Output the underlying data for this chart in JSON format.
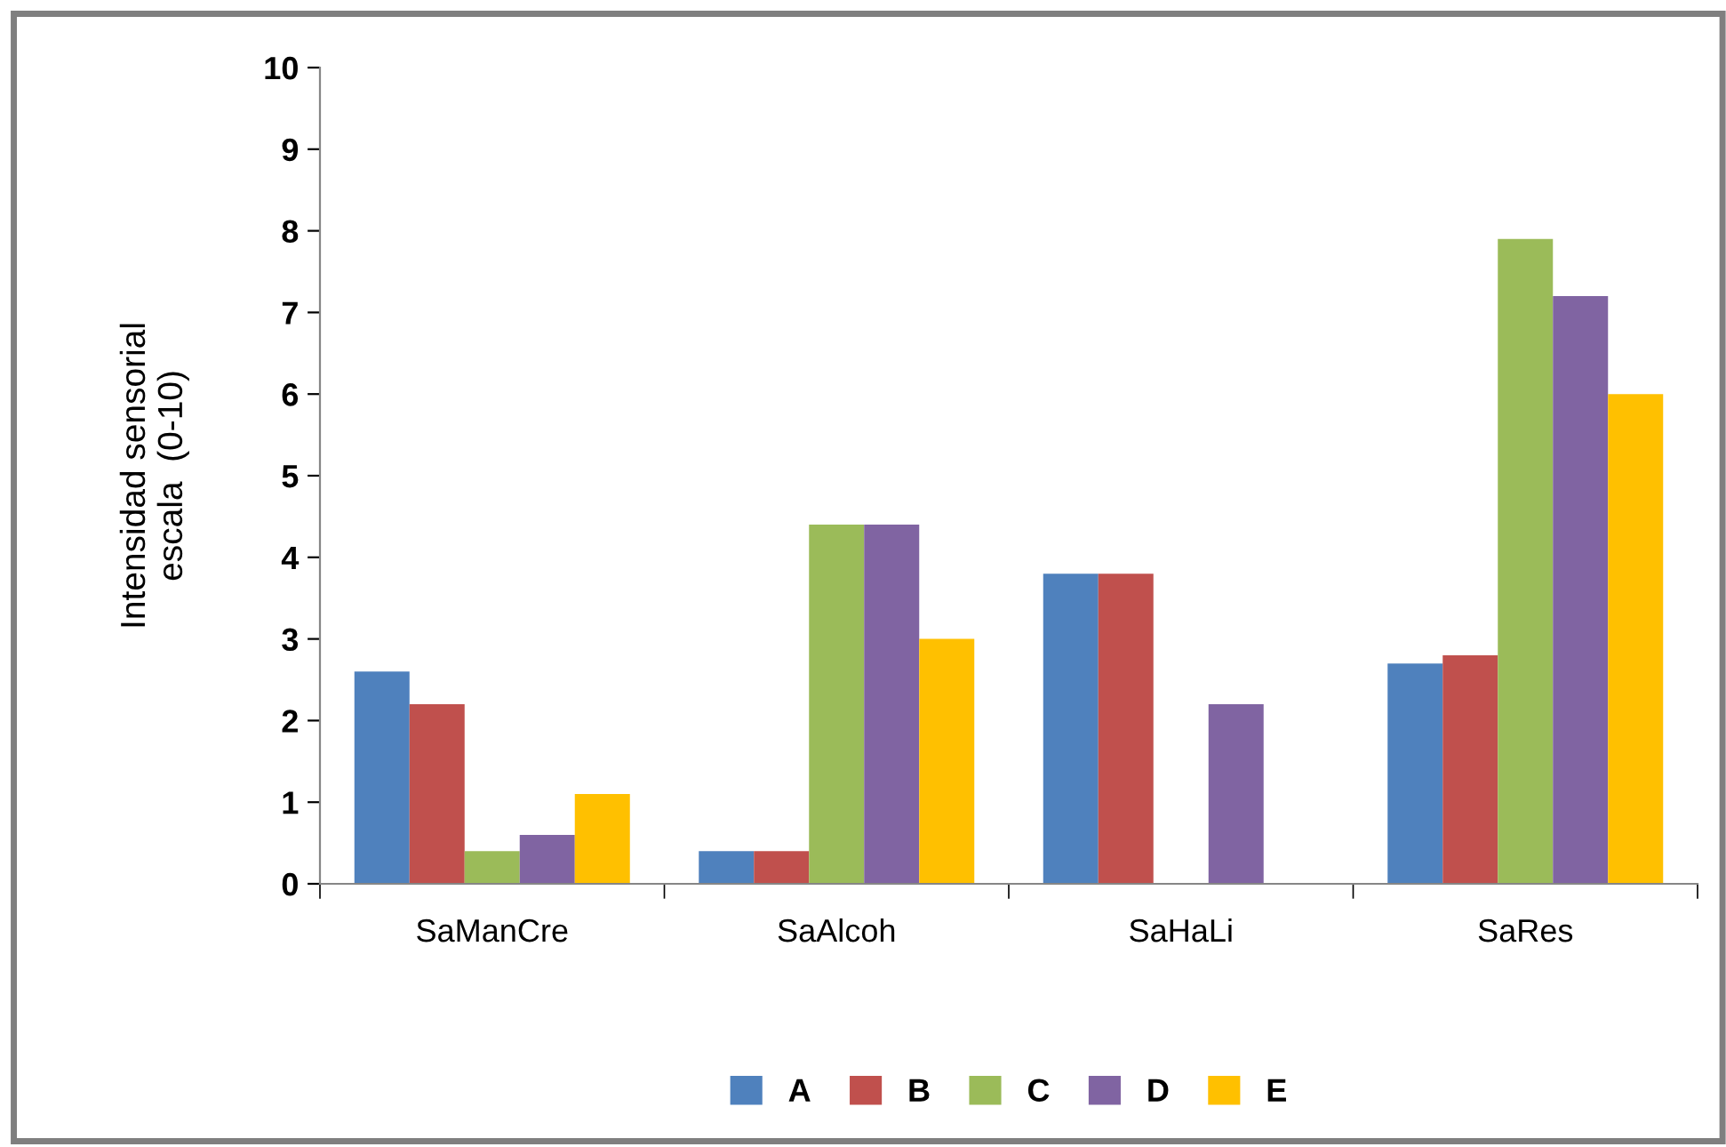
{
  "chart_data": {
    "type": "bar",
    "ylabel": "Intensidad sensorial\nescala  (0-10)",
    "categories": [
      "SaManCre",
      "SaAlcoh",
      "SaHaLi",
      "SaRes"
    ],
    "series": [
      {
        "name": "A",
        "color": "#4f81bd",
        "values": [
          2.6,
          0.4,
          3.8,
          2.7
        ]
      },
      {
        "name": "B",
        "color": "#c0504d",
        "values": [
          2.2,
          0.4,
          3.8,
          2.8
        ]
      },
      {
        "name": "C",
        "color": "#9bbb59",
        "values": [
          0.4,
          4.4,
          null,
          7.9
        ]
      },
      {
        "name": "D",
        "color": "#8064a2",
        "values": [
          0.6,
          4.4,
          2.2,
          7.2
        ]
      },
      {
        "name": "E",
        "color": "#ffc000",
        "values": [
          1.1,
          3.0,
          null,
          6.0
        ]
      }
    ],
    "ylim": [
      0,
      10
    ],
    "yticks": [
      0,
      1,
      2,
      3,
      4,
      5,
      6,
      7,
      8,
      9,
      10
    ],
    "grid": false,
    "legend": "bottom"
  }
}
